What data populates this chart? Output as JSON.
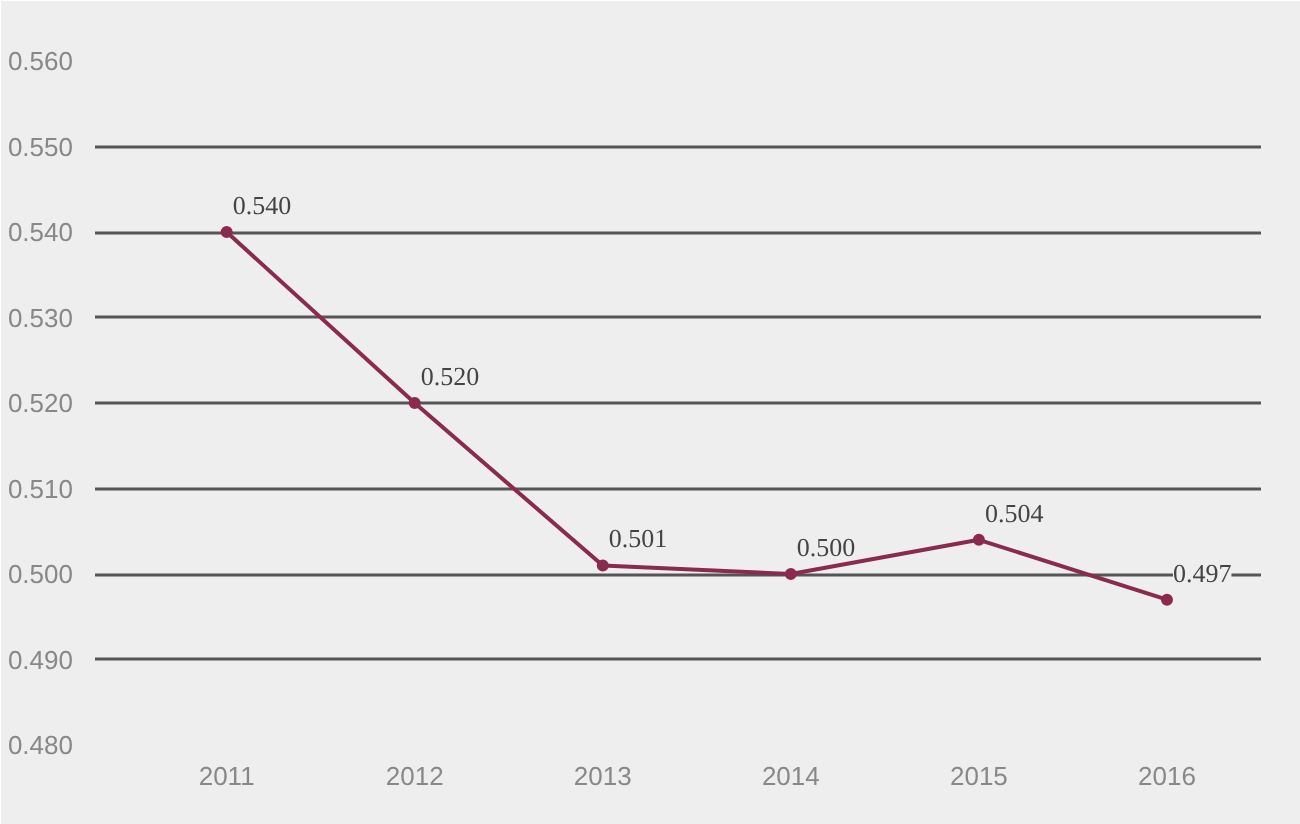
{
  "chart_data": {
    "type": "line",
    "categories": [
      "2011",
      "2012",
      "2013",
      "2014",
      "2015",
      "2016"
    ],
    "series": [
      {
        "color": "#8b2a4f",
        "values": [
          0.54,
          0.52,
          0.501,
          0.5,
          0.504,
          0.497
        ]
      }
    ],
    "value_labels": [
      "0.540",
      "0.520",
      "0.501",
      "0.500",
      "0.504",
      "0.497"
    ],
    "ylim": [
      0.48,
      0.56
    ],
    "yticks": [
      {
        "value": 0.48,
        "label": "0.480"
      },
      {
        "value": 0.49,
        "label": "0.490"
      },
      {
        "value": 0.5,
        "label": "0.500"
      },
      {
        "value": 0.51,
        "label": "0.510"
      },
      {
        "value": 0.52,
        "label": "0.520"
      },
      {
        "value": 0.53,
        "label": "0.530"
      },
      {
        "value": 0.54,
        "label": "0.540"
      },
      {
        "value": 0.55,
        "label": "0.550"
      },
      {
        "value": 0.56,
        "label": "0.560"
      }
    ],
    "grid": "y",
    "marker": "circle",
    "line_style": "solid"
  }
}
